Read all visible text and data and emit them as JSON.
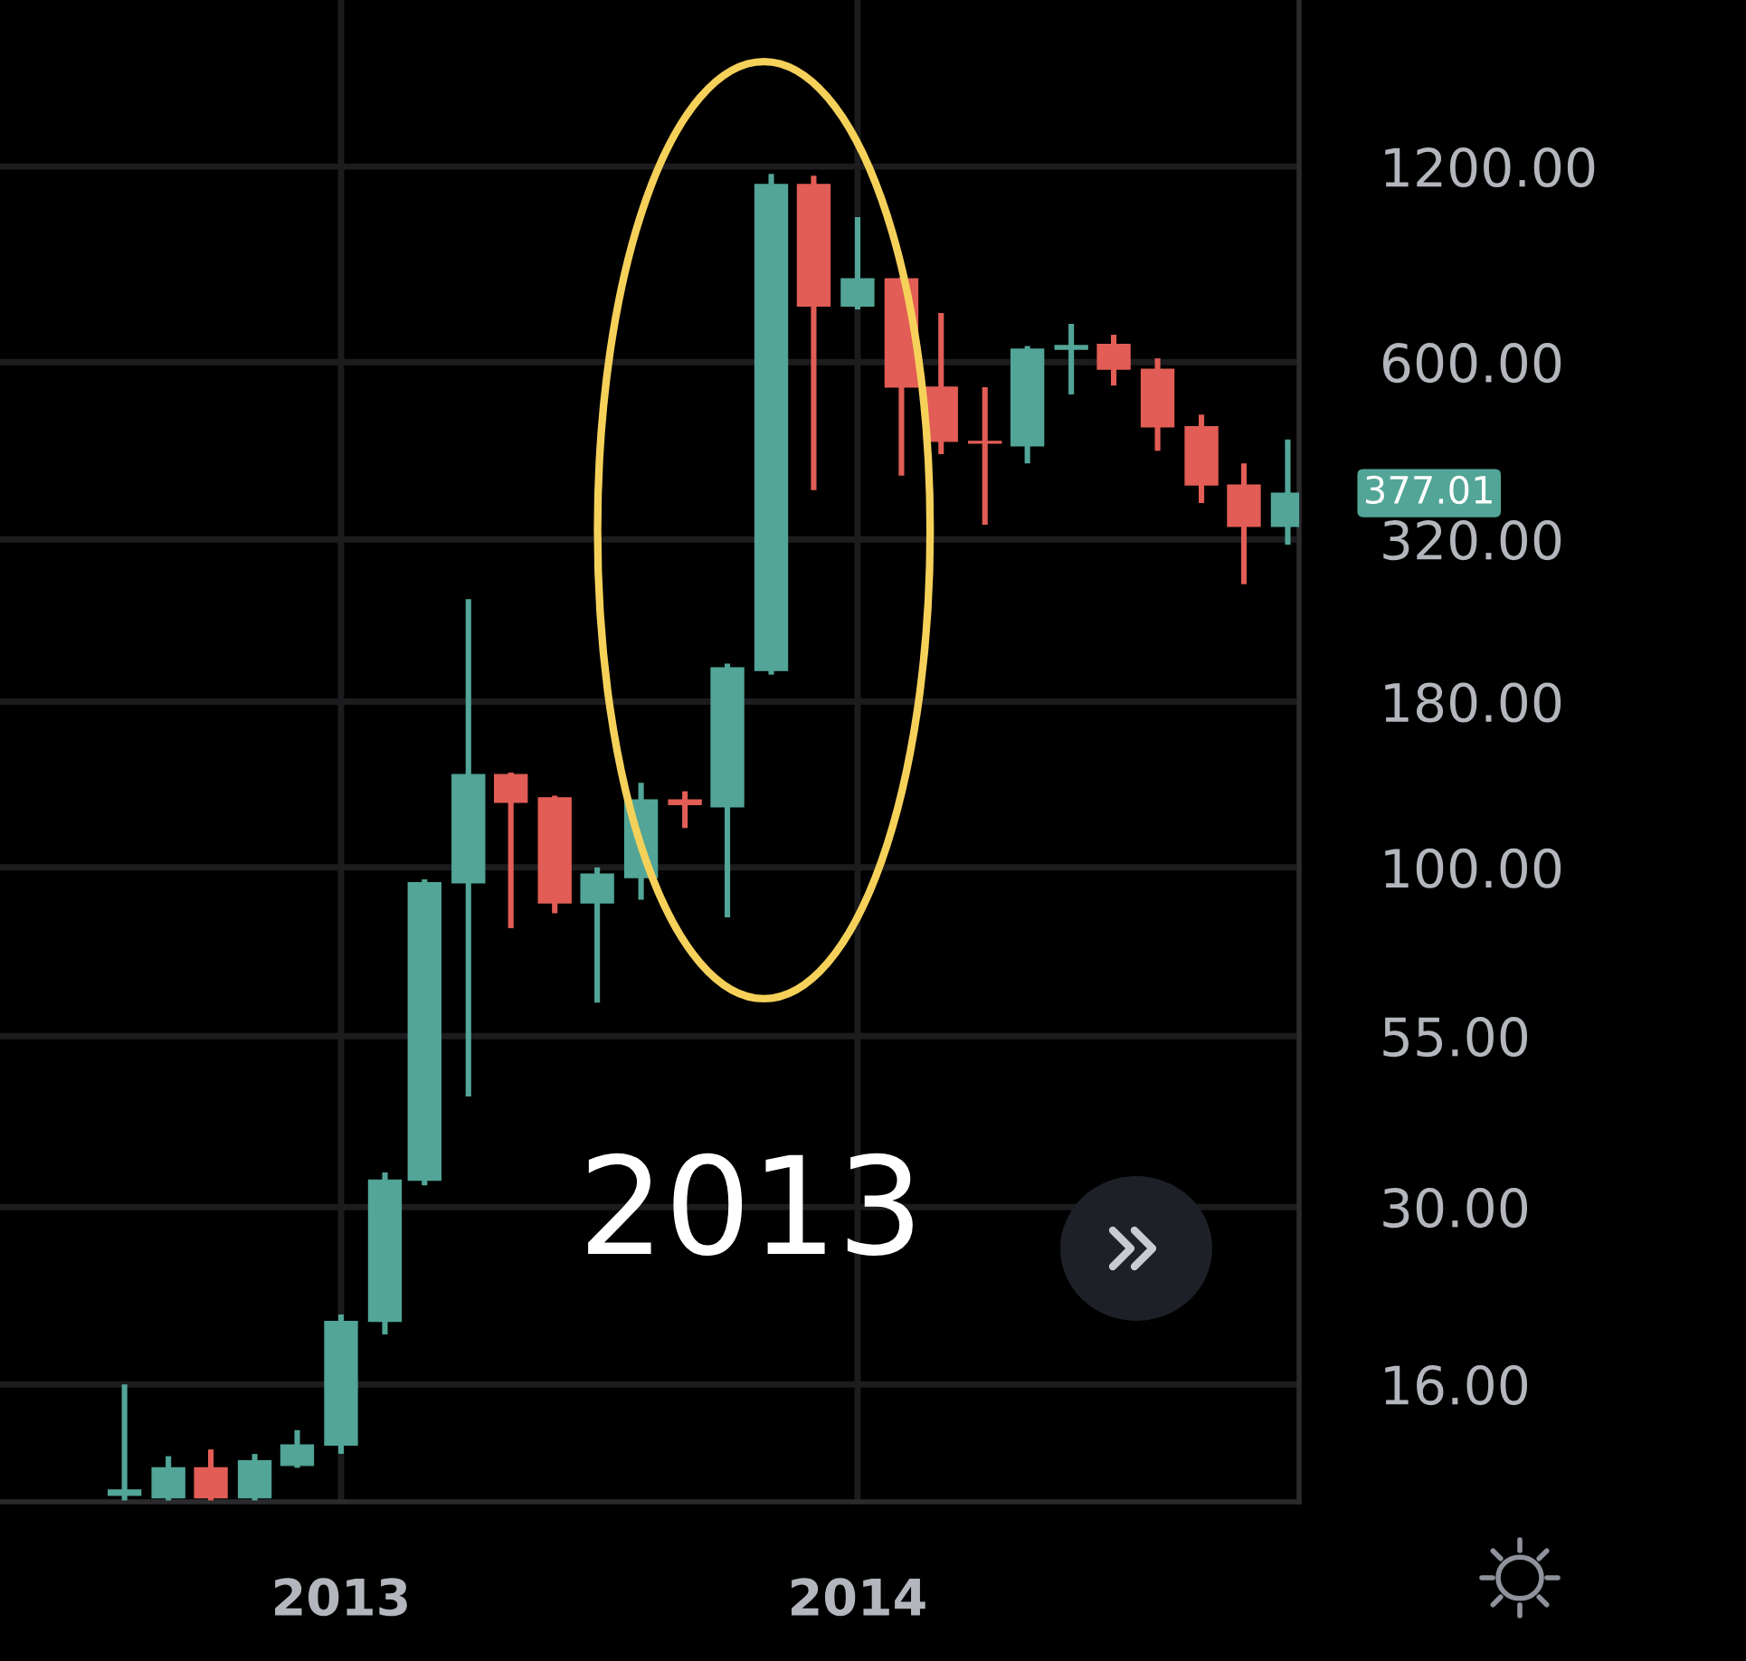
{
  "chart_data": {
    "type": "candlestick",
    "x": [
      "2012-08",
      "2012-09",
      "2012-10",
      "2012-11",
      "2012-12",
      "2013-01",
      "2013-02",
      "2013-03",
      "2013-04",
      "2013-05",
      "2013-06",
      "2013-07",
      "2013-08",
      "2013-09",
      "2013-10",
      "2013-11",
      "2013-12",
      "2014-01",
      "2014-02",
      "2014-03",
      "2014-04",
      "2014-05",
      "2014-06",
      "2014-07",
      "2014-08",
      "2014-09",
      "2014-10",
      "2014-11"
    ],
    "ohlc": [
      [
        10.8,
        16.0,
        10.6,
        11.0
      ],
      [
        10.7,
        12.4,
        10.6,
        11.9
      ],
      [
        11.9,
        12.7,
        10.6,
        10.7
      ],
      [
        10.7,
        12.5,
        10.6,
        12.2
      ],
      [
        12.0,
        13.6,
        11.9,
        12.9
      ],
      [
        12.9,
        20.5,
        12.5,
        20.0
      ],
      [
        20.0,
        33.9,
        19.1,
        33.0
      ],
      [
        33.0,
        95.9,
        32.4,
        94.7
      ],
      [
        94.7,
        259,
        44.4,
        139
      ],
      [
        139,
        140,
        80.6,
        126
      ],
      [
        128,
        129,
        85.0,
        88.2
      ],
      [
        88.2,
        100,
        61.9,
        97.7
      ],
      [
        96.5,
        135,
        89.2,
        127
      ],
      [
        127,
        131,
        115,
        125
      ],
      [
        124,
        206,
        83.8,
        203
      ],
      [
        201,
        1169,
        198,
        1126
      ],
      [
        1126,
        1162,
        381,
        732
      ],
      [
        732,
        1003,
        723,
        806
      ],
      [
        806,
        810,
        401,
        549
      ],
      [
        549,
        714,
        433,
        453
      ],
      [
        453,
        549,
        337,
        450
      ],
      [
        446,
        635,
        419,
        628
      ],
      [
        628,
        687,
        535,
        636
      ],
      [
        639,
        661,
        552,
        585
      ],
      [
        585,
        608,
        438,
        477
      ],
      [
        477,
        498,
        364,
        388
      ],
      [
        388,
        419,
        273,
        335
      ],
      [
        335,
        456,
        314,
        377.01
      ]
    ],
    "colors": [
      "#52a597",
      "#52a597",
      "#e15d55",
      "#52a597",
      "#52a597",
      "#52a597",
      "#52a597",
      "#52a597",
      "#52a597",
      "#e15d55",
      "#e15d55",
      "#52a597",
      "#52a597",
      "#e15d55",
      "#52a597",
      "#52a597",
      "#e15d55",
      "#52a597",
      "#e15d55",
      "#e15d55",
      "#e15d55",
      "#52a597",
      "#52a597",
      "#e15d55",
      "#e15d55",
      "#e15d55",
      "#e15d55",
      "#52a597"
    ],
    "xlim": [
      "2012-05-05",
      "2014-11-09"
    ],
    "xticks": [
      {
        "value": "2013-01",
        "label": "2013"
      },
      {
        "value": "2014-01",
        "label": "2014"
      }
    ],
    "ylim": [
      10.55,
      2166
    ],
    "yticks": [
      {
        "value": 16,
        "label": "16.00"
      },
      {
        "value": 30,
        "label": "30.00"
      },
      {
        "value": 55,
        "label": "55.00"
      },
      {
        "value": 100,
        "label": "100.00"
      },
      {
        "value": 180,
        "label": "180.00"
      },
      {
        "value": 320,
        "label": "320.00"
      },
      {
        "value": 600,
        "label": "600.00"
      },
      {
        "value": 1200,
        "label": "1200.00"
      }
    ],
    "log": true,
    "grid": true,
    "annotations": [
      {
        "text": "377.01",
        "x": "2014-11",
        "y": 377.01
      },
      "2013"
    ]
  }
}
